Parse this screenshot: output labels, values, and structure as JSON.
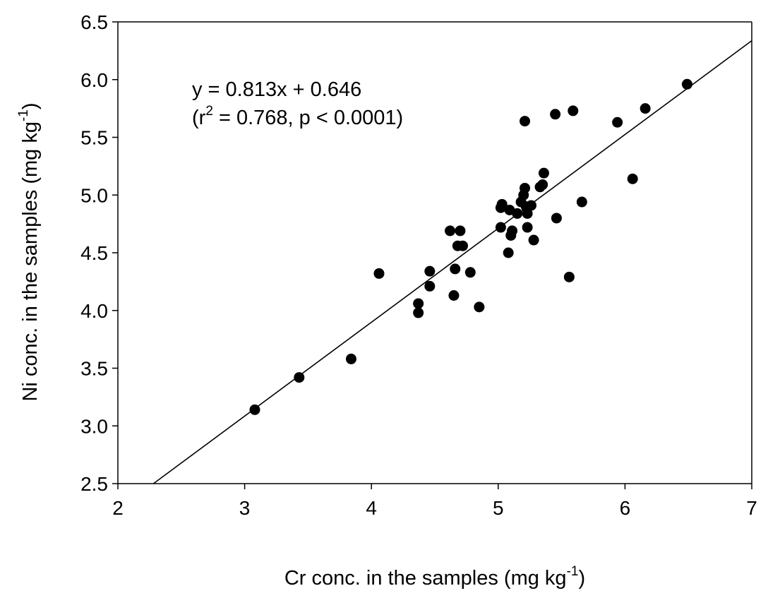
{
  "chart_data": {
    "type": "scatter",
    "title": "",
    "xlabel": {
      "text": "Cr conc. in the samples (mg kg",
      "sup": "-1",
      "suffix": ")"
    },
    "ylabel": {
      "text": "Ni conc. in the samples (mg kg",
      "sup": "-1",
      "suffix": ")"
    },
    "xlim": [
      2,
      7
    ],
    "ylim": [
      2.5,
      6.5
    ],
    "x_ticks": [
      "2",
      "3",
      "4",
      "5",
      "6",
      "7"
    ],
    "y_ticks": [
      "2.5",
      "3.0",
      "3.5",
      "4.0",
      "4.5",
      "5.0",
      "5.5",
      "6.0",
      "6.5"
    ],
    "grid": false,
    "regression": {
      "slope": 0.813,
      "intercept": 0.646
    },
    "annotation": {
      "line1": "y = 0.813x + 0.646",
      "line2_prefix": "(r",
      "line2_sup": "2",
      "line2_rest": " = 0.768, p < 0.0001)"
    },
    "marker_color": "#000000",
    "points": [
      [
        3.08,
        3.14
      ],
      [
        3.43,
        3.42
      ],
      [
        3.84,
        3.58
      ],
      [
        4.06,
        4.32
      ],
      [
        4.37,
        4.06
      ],
      [
        4.37,
        3.98
      ],
      [
        4.46,
        4.34
      ],
      [
        4.46,
        4.21
      ],
      [
        4.62,
        4.69
      ],
      [
        4.65,
        4.13
      ],
      [
        4.66,
        4.36
      ],
      [
        4.68,
        4.56
      ],
      [
        4.7,
        4.69
      ],
      [
        4.72,
        4.56
      ],
      [
        4.78,
        4.33
      ],
      [
        4.85,
        4.03
      ],
      [
        5.02,
        4.89
      ],
      [
        5.02,
        4.72
      ],
      [
        5.03,
        4.92
      ],
      [
        5.08,
        4.5
      ],
      [
        5.09,
        4.87
      ],
      [
        5.1,
        4.65
      ],
      [
        5.11,
        4.69
      ],
      [
        5.15,
        4.84
      ],
      [
        5.18,
        4.94
      ],
      [
        5.2,
        5.0
      ],
      [
        5.21,
        5.06
      ],
      [
        5.21,
        5.64
      ],
      [
        5.22,
        4.9
      ],
      [
        5.23,
        4.84
      ],
      [
        5.23,
        4.72
      ],
      [
        5.26,
        4.91
      ],
      [
        5.28,
        4.61
      ],
      [
        5.33,
        5.07
      ],
      [
        5.35,
        5.09
      ],
      [
        5.36,
        5.19
      ],
      [
        5.45,
        5.7
      ],
      [
        5.46,
        4.8
      ],
      [
        5.56,
        4.29
      ],
      [
        5.59,
        5.73
      ],
      [
        5.66,
        4.94
      ],
      [
        5.94,
        5.63
      ],
      [
        6.06,
        5.14
      ],
      [
        6.16,
        5.75
      ],
      [
        6.49,
        5.96
      ]
    ]
  }
}
